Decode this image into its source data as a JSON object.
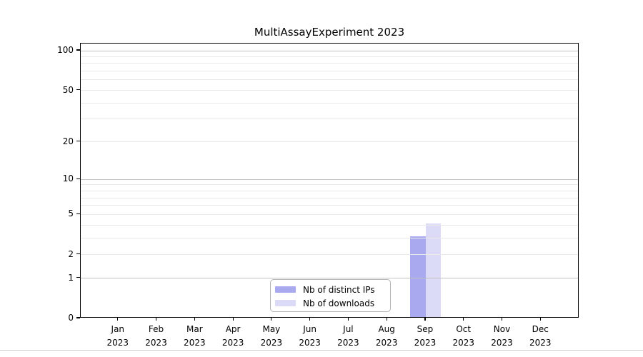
{
  "figure": {
    "title": "MultiAssayExperiment 2023"
  },
  "chart_data": {
    "type": "bar",
    "title": "MultiAssayExperiment 2023",
    "categories": [
      "Jan 2023",
      "Feb 2023",
      "Mar 2023",
      "Apr 2023",
      "May 2023",
      "Jun 2023",
      "Jul 2023",
      "Aug 2023",
      "Sep 2023",
      "Oct 2023",
      "Nov 2023",
      "Dec 2023"
    ],
    "series": [
      {
        "name": "Nb of distinct IPs",
        "color": "#a9a9f0",
        "values": [
          0,
          0,
          0,
          0,
          0,
          0,
          0,
          0,
          3,
          0,
          0,
          0
        ]
      },
      {
        "name": "Nb of downloads",
        "color": "#dbdbf8",
        "values": [
          0,
          0,
          0,
          0,
          0,
          0,
          0,
          0,
          4,
          0,
          0,
          0
        ]
      }
    ],
    "xlabel": "",
    "ylabel": "",
    "yscale": "log1p",
    "ylim": [
      0,
      100
    ],
    "ytick_values": [
      0,
      1,
      2,
      5,
      10,
      20,
      50,
      100
    ],
    "ytick_labels": [
      "0",
      "1",
      "2",
      "5",
      "10",
      "20",
      "50",
      "100"
    ],
    "major_grid_values": [
      1,
      10,
      100
    ],
    "minor_grid_values": [
      2,
      3,
      4,
      5,
      6,
      7,
      8,
      9,
      20,
      30,
      40,
      50,
      60,
      70,
      80,
      90
    ],
    "grid": true,
    "legend_position": "bottom-center",
    "colors": {
      "distinct_ips": "#a9a9f0",
      "downloads": "#dbdbf8",
      "major_grid": "#c2c2c2",
      "minor_grid": "#e9e9e9",
      "legend_border": "#b4b4b4",
      "divider": "#cccccc"
    }
  }
}
